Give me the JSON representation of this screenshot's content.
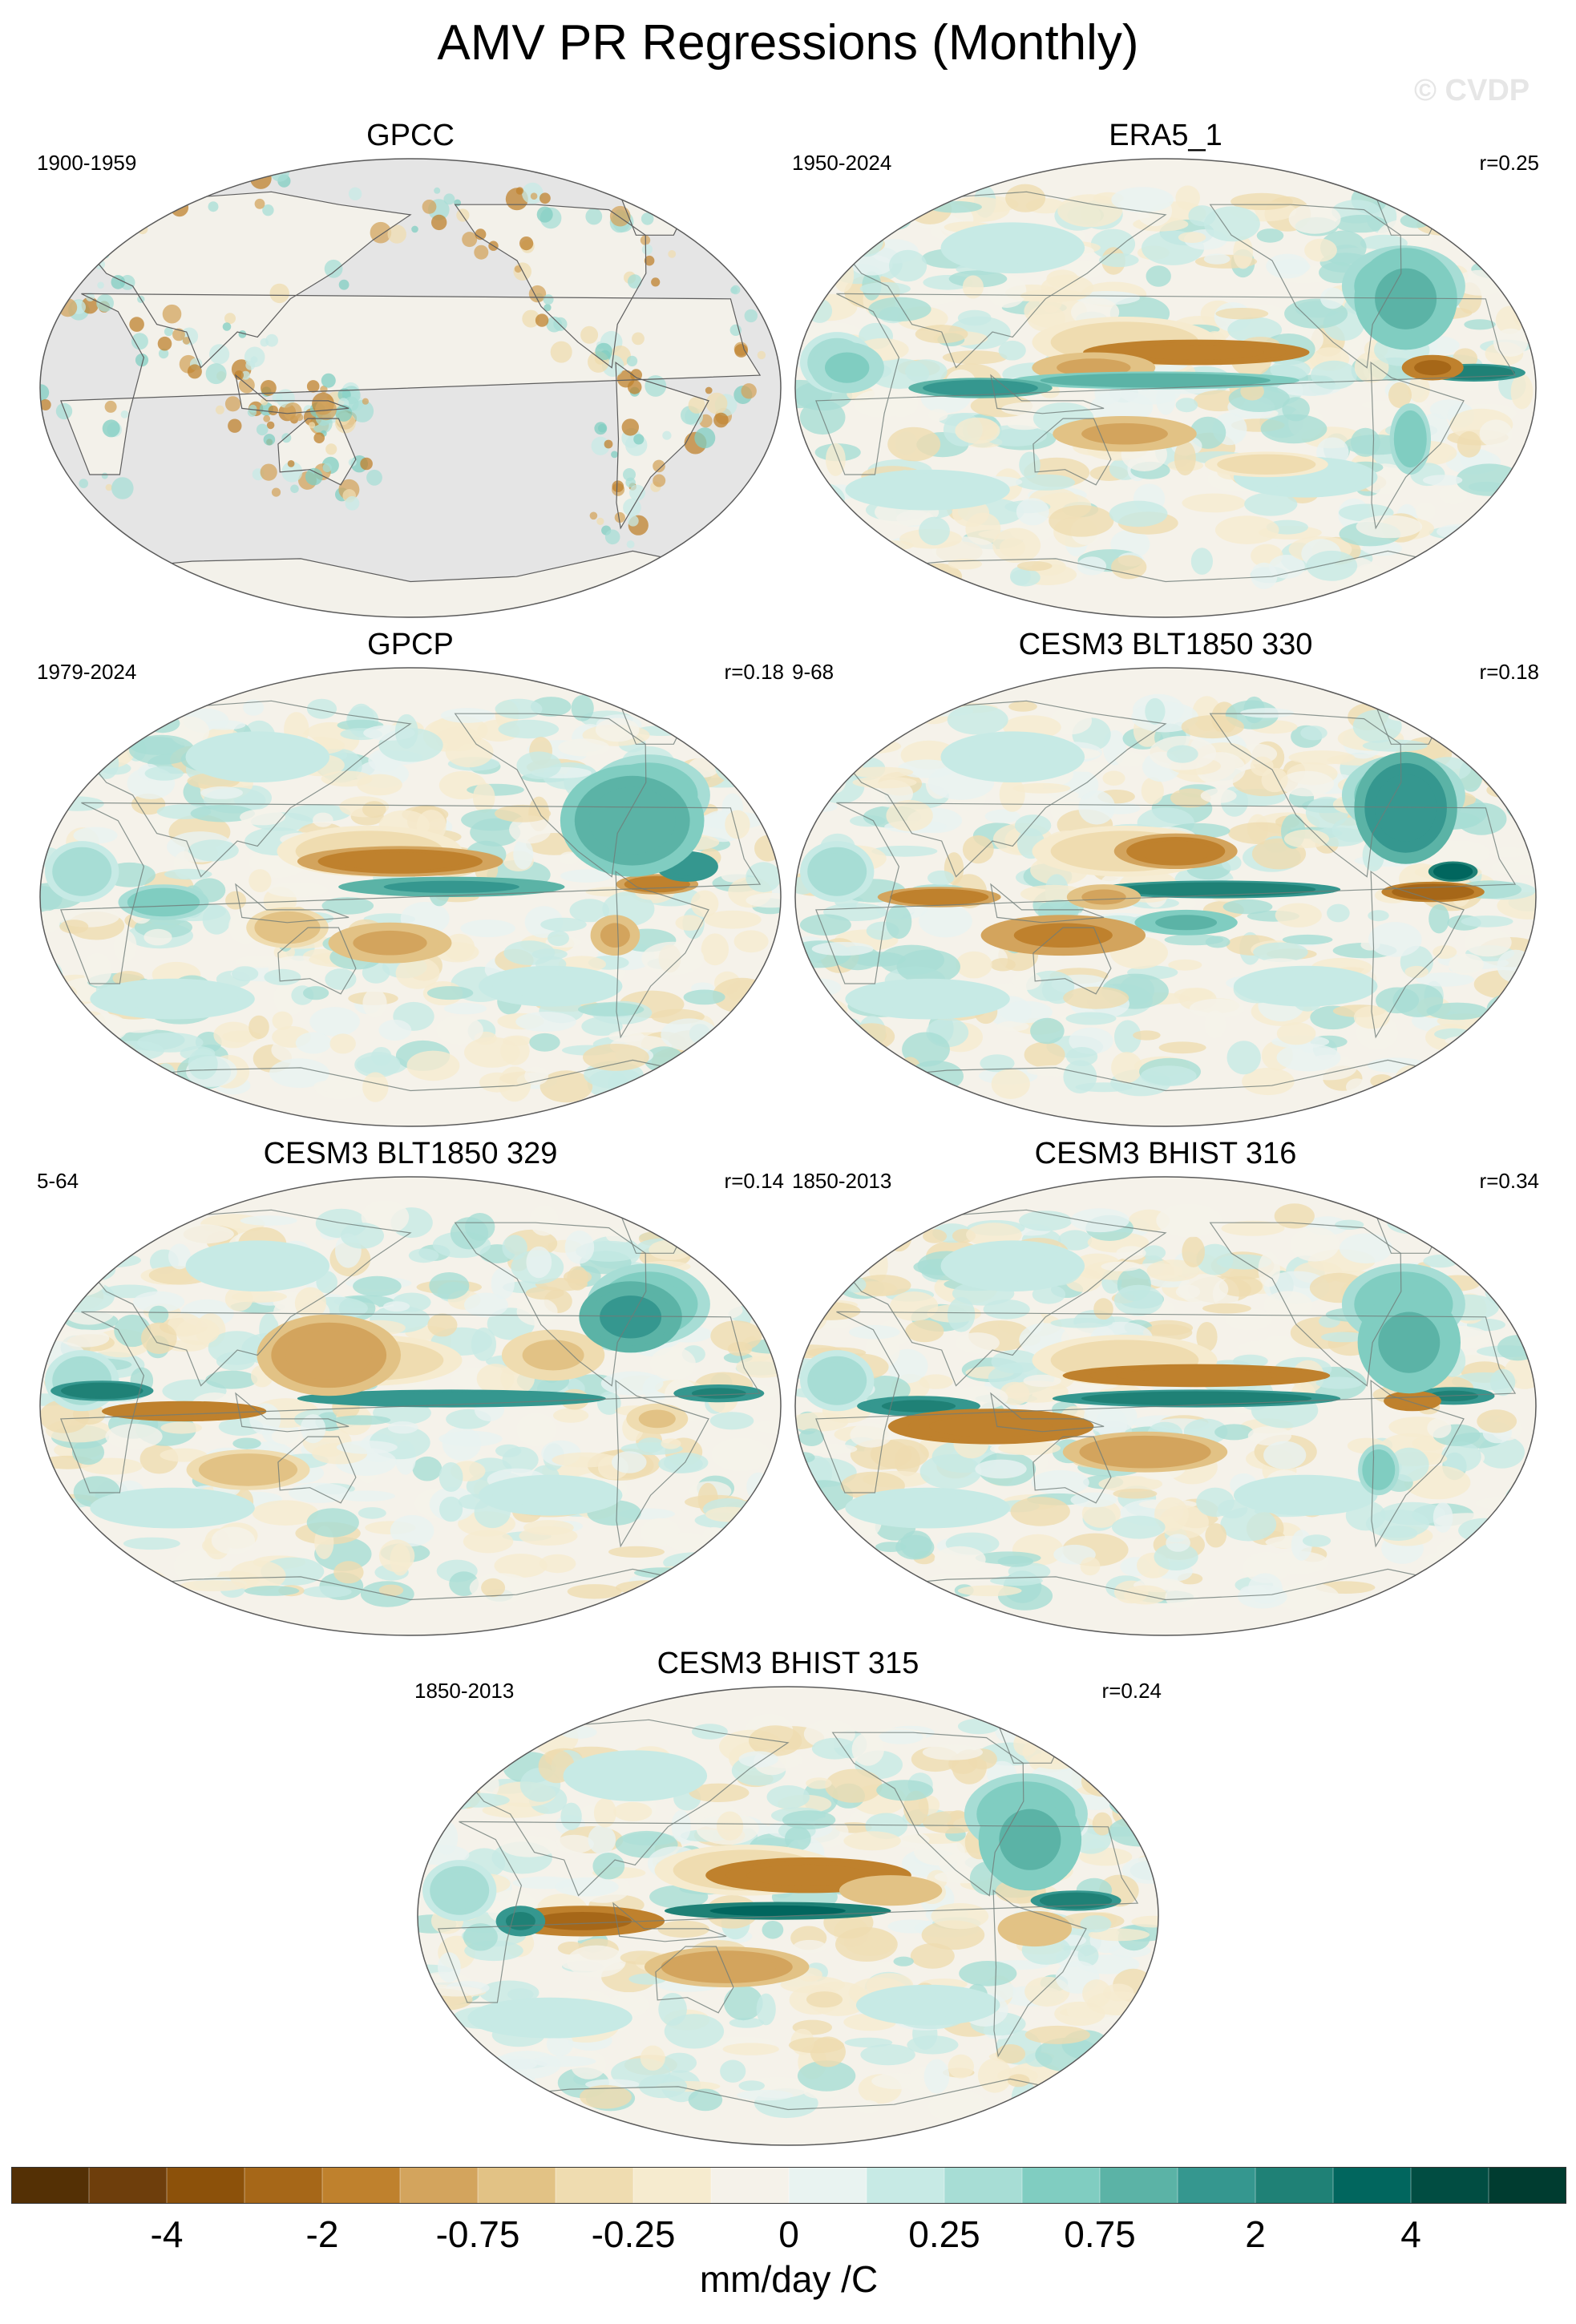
{
  "title": "AMV PR Regressions (Monthly)",
  "watermark": "© CVDP",
  "panels": [
    {
      "title": "GPCC",
      "years": "1900-1959",
      "r": "",
      "style": "gpcc"
    },
    {
      "title": "ERA5_1",
      "years": "1950-2024",
      "r": "r=0.25",
      "style": "era5"
    },
    {
      "title": "GPCP",
      "years": "1979-2024",
      "r": "r=0.18",
      "style": "gpcp"
    },
    {
      "title": "CESM3 BLT1850 330",
      "years": "9-68",
      "r": "r=0.18",
      "style": "blt330"
    },
    {
      "title": "CESM3 BLT1850 329",
      "years": "5-64",
      "r": "r=0.14",
      "style": "blt329"
    },
    {
      "title": "CESM3 BHIST 316",
      "years": "1850-2013",
      "r": "r=0.34",
      "style": "bhist316"
    },
    {
      "title": "CESM3 BHIST 315",
      "years": "1850-2013",
      "r": "r=0.24",
      "style": "bhist315"
    }
  ],
  "chart_data": {
    "type": "heatmap",
    "title": "AMV PR Regressions (Monthly)",
    "projection": "Robinson, global, centered on Pacific",
    "units": "mm/day /C",
    "colorbar": {
      "label": "mm/day /C",
      "tick_labels": [
        "-4",
        "-2",
        "-0.75",
        "-0.25",
        "0",
        "0.25",
        "0.75",
        "2",
        "4"
      ],
      "levels": [
        -5,
        -4,
        -3,
        -2,
        -1,
        -0.75,
        -0.5,
        -0.25,
        -0.1,
        0,
        0.1,
        0.25,
        0.5,
        0.75,
        1,
        2,
        3,
        4,
        5
      ],
      "colors": [
        "#543005",
        "#6e3e0c",
        "#8c510a",
        "#a66718",
        "#bf812d",
        "#d3a45d",
        "#e2c285",
        "#efdcb0",
        "#f6ebcf",
        "#f5f2ea",
        "#e9f3f1",
        "#c7eae5",
        "#a7ddd5",
        "#80cdc1",
        "#5bb3a6",
        "#35978f",
        "#1f8176",
        "#01665e",
        "#014d42",
        "#003c30"
      ]
    },
    "series": [
      {
        "name": "GPCC",
        "period": "1900-1959",
        "r": null,
        "land_only": true
      },
      {
        "name": "ERA5_1",
        "period": "1950-2024",
        "r": 0.25
      },
      {
        "name": "GPCP",
        "period": "1979-2024",
        "r": 0.18
      },
      {
        "name": "CESM3 BLT1850 330",
        "period": "9-68",
        "r": 0.18
      },
      {
        "name": "CESM3 BLT1850 329",
        "period": "5-64",
        "r": 0.14
      },
      {
        "name": "CESM3 BHIST 316",
        "period": "1850-2013",
        "r": 0.34
      },
      {
        "name": "CESM3 BHIST 315",
        "period": "1850-2013",
        "r": 0.24
      }
    ]
  }
}
